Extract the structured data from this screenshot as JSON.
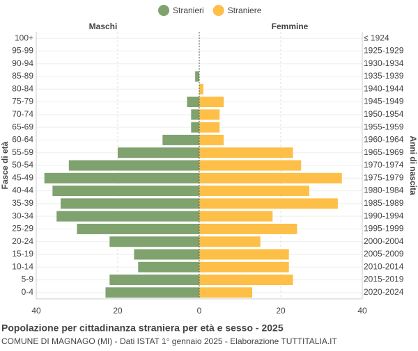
{
  "chart_data": {
    "type": "pyramid",
    "title": "Popolazione per cittadinanza straniera per età e sesso - 2025",
    "subtitle": "COMUNE DI MAGNAGO (MI) - Dati ISTAT 1° gennaio 2025 - Elaborazione TUTTITALIA.IT",
    "left_label": "Maschi",
    "right_label": "Femmine",
    "y_label": "Fasce di età",
    "y2_label": "Anni di nascita",
    "categories": [
      "100+",
      "95-99",
      "90-94",
      "85-89",
      "80-84",
      "75-79",
      "70-74",
      "65-69",
      "60-64",
      "55-59",
      "50-54",
      "45-49",
      "40-44",
      "35-39",
      "30-34",
      "25-29",
      "20-24",
      "15-19",
      "10-14",
      "5-9",
      "0-4"
    ],
    "birth_years": [
      "≤ 1924",
      "1925-1929",
      "1930-1934",
      "1935-1939",
      "1940-1944",
      "1945-1949",
      "1950-1954",
      "1955-1959",
      "1960-1964",
      "1965-1969",
      "1970-1974",
      "1975-1979",
      "1980-1984",
      "1985-1989",
      "1990-1994",
      "1995-1999",
      "2000-2004",
      "2005-2009",
      "2010-2014",
      "2015-2019",
      "2020-2024"
    ],
    "series": [
      {
        "name": "Stranieri",
        "color": "#7fa26f",
        "side": "left",
        "values": [
          0,
          0,
          0,
          1,
          0,
          3,
          2,
          2,
          9,
          20,
          32,
          38,
          36,
          34,
          35,
          30,
          22,
          16,
          15,
          22,
          23
        ]
      },
      {
        "name": "Straniere",
        "color": "#fdbf47",
        "side": "right",
        "values": [
          0,
          0,
          0,
          0,
          1,
          6,
          5,
          5,
          6,
          23,
          25,
          35,
          27,
          34,
          18,
          24,
          15,
          22,
          22,
          23,
          13
        ]
      }
    ],
    "xlim": [
      -40,
      40
    ],
    "xticks": [
      {
        "value": -40,
        "label": "40"
      },
      {
        "value": -20,
        "label": "20"
      },
      0,
      20,
      40
    ],
    "grid": true
  }
}
